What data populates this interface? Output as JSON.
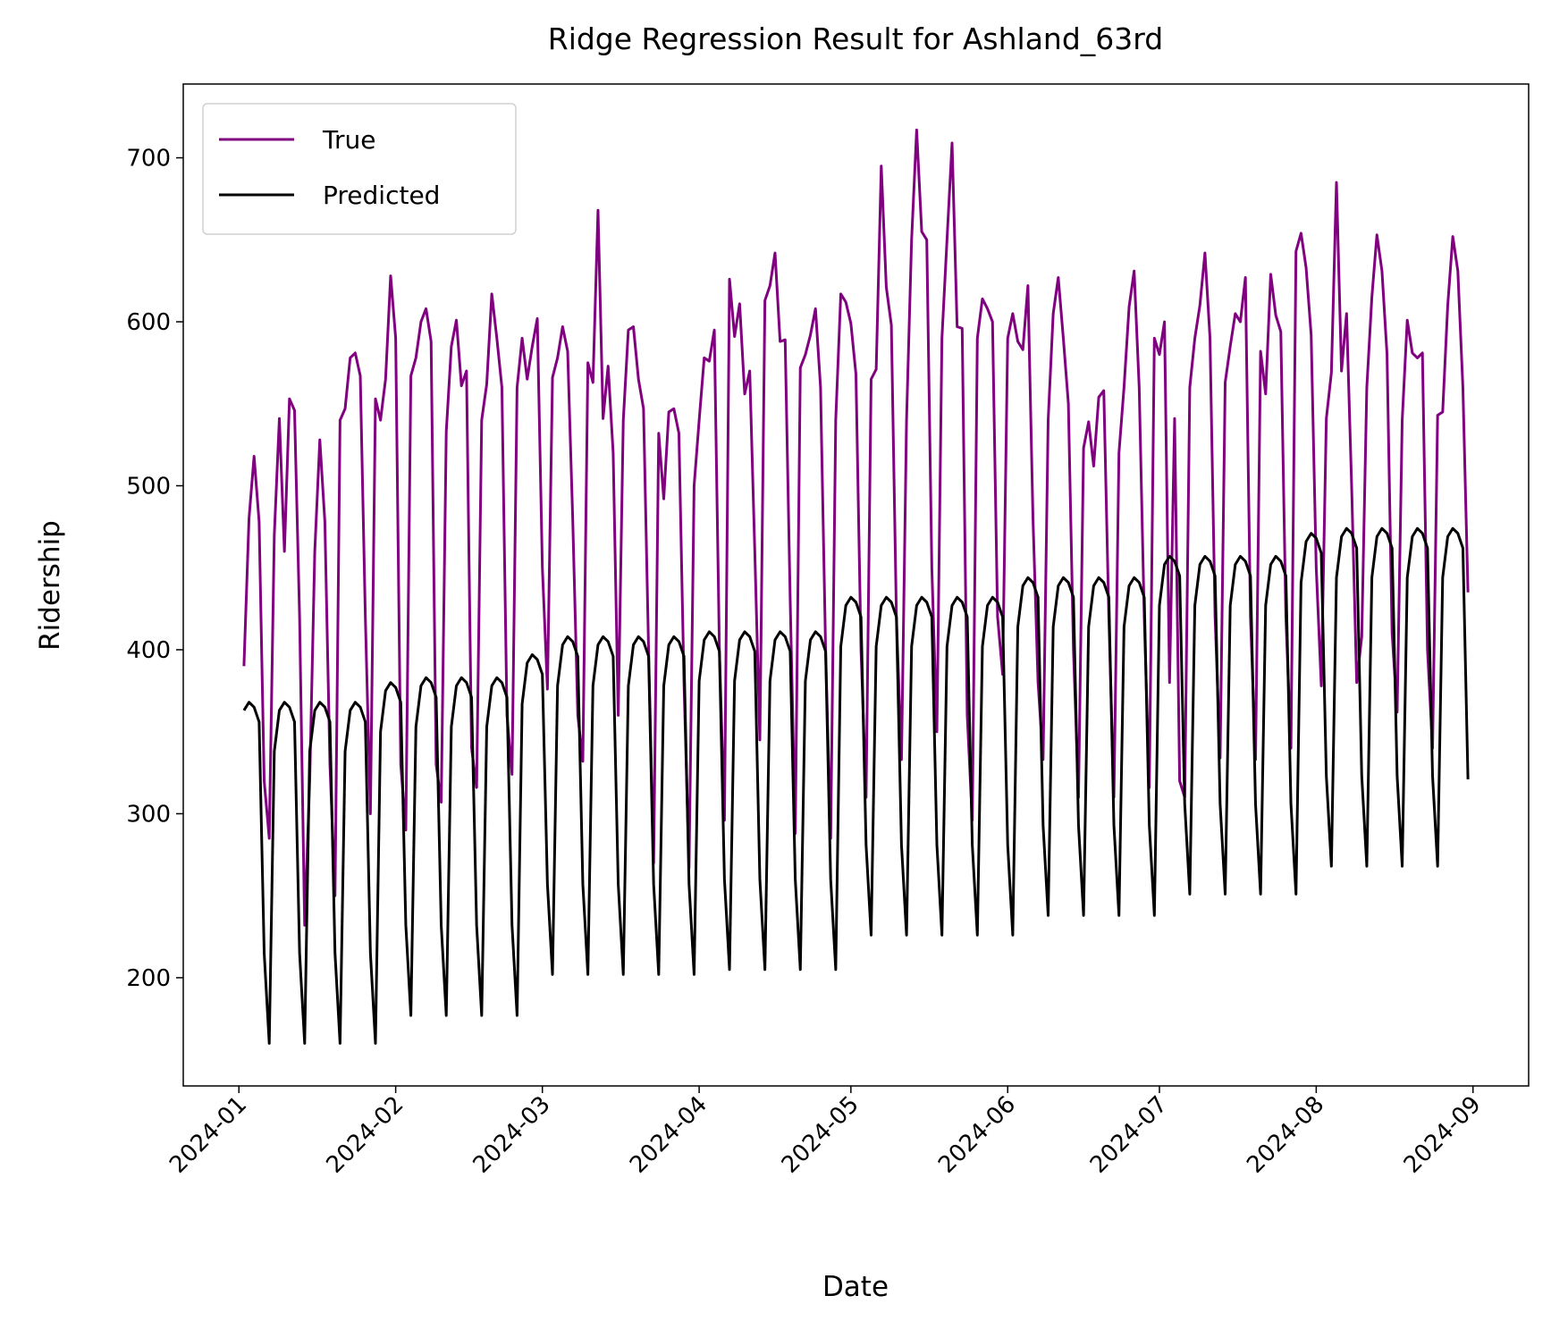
{
  "chart_data": {
    "type": "line",
    "title": "Ridge Regression Result for Ashland_63rd",
    "x_label": "Date",
    "y_label": "Ridership",
    "x": [
      "2024-01-02",
      "2024-01-03",
      "2024-01-04",
      "2024-01-05",
      "2024-01-06",
      "2024-01-07",
      "2024-01-08",
      "2024-01-09",
      "2024-01-10",
      "2024-01-11",
      "2024-01-12",
      "2024-01-13",
      "2024-01-14",
      "2024-01-15",
      "2024-01-16",
      "2024-01-17",
      "2024-01-18",
      "2024-01-19",
      "2024-01-20",
      "2024-01-21",
      "2024-01-22",
      "2024-01-23",
      "2024-01-24",
      "2024-01-25",
      "2024-01-26",
      "2024-01-27",
      "2024-01-28",
      "2024-01-29",
      "2024-01-30",
      "2024-01-31",
      "2024-02-01",
      "2024-02-02",
      "2024-02-03",
      "2024-02-04",
      "2024-02-05",
      "2024-02-06",
      "2024-02-07",
      "2024-02-08",
      "2024-02-09",
      "2024-02-10",
      "2024-02-11",
      "2024-02-12",
      "2024-02-13",
      "2024-02-14",
      "2024-02-15",
      "2024-02-16",
      "2024-02-17",
      "2024-02-18",
      "2024-02-19",
      "2024-02-20",
      "2024-02-21",
      "2024-02-22",
      "2024-02-23",
      "2024-02-24",
      "2024-02-25",
      "2024-02-26",
      "2024-02-27",
      "2024-02-28",
      "2024-02-29",
      "2024-03-01",
      "2024-03-02",
      "2024-03-03",
      "2024-03-04",
      "2024-03-05",
      "2024-03-06",
      "2024-03-07",
      "2024-03-08",
      "2024-03-09",
      "2024-03-10",
      "2024-03-11",
      "2024-03-12",
      "2024-03-13",
      "2024-03-14",
      "2024-03-15",
      "2024-03-16",
      "2024-03-17",
      "2024-03-18",
      "2024-03-19",
      "2024-03-20",
      "2024-03-21",
      "2024-03-22",
      "2024-03-23",
      "2024-03-24",
      "2024-03-25",
      "2024-03-26",
      "2024-03-27",
      "2024-03-28",
      "2024-03-29",
      "2024-03-30",
      "2024-03-31",
      "2024-04-01",
      "2024-04-02",
      "2024-04-03",
      "2024-04-04",
      "2024-04-05",
      "2024-04-06",
      "2024-04-07",
      "2024-04-08",
      "2024-04-09",
      "2024-04-10",
      "2024-04-11",
      "2024-04-12",
      "2024-04-13",
      "2024-04-14",
      "2024-04-15",
      "2024-04-16",
      "2024-04-17",
      "2024-04-18",
      "2024-04-19",
      "2024-04-20",
      "2024-04-21",
      "2024-04-22",
      "2024-04-23",
      "2024-04-24",
      "2024-04-25",
      "2024-04-26",
      "2024-04-27",
      "2024-04-28",
      "2024-04-29",
      "2024-04-30",
      "2024-05-01",
      "2024-05-02",
      "2024-05-03",
      "2024-05-04",
      "2024-05-05",
      "2024-05-06",
      "2024-05-07",
      "2024-05-08",
      "2024-05-09",
      "2024-05-10",
      "2024-05-11",
      "2024-05-12",
      "2024-05-13",
      "2024-05-14",
      "2024-05-15",
      "2024-05-16",
      "2024-05-17",
      "2024-05-18",
      "2024-05-19",
      "2024-05-20",
      "2024-05-21",
      "2024-05-22",
      "2024-05-23",
      "2024-05-24",
      "2024-05-25",
      "2024-05-26",
      "2024-05-27",
      "2024-05-28",
      "2024-05-29",
      "2024-05-30",
      "2024-05-31",
      "2024-06-01",
      "2024-06-02",
      "2024-06-03",
      "2024-06-04",
      "2024-06-05",
      "2024-06-06",
      "2024-06-07",
      "2024-06-08",
      "2024-06-09",
      "2024-06-10",
      "2024-06-11",
      "2024-06-12",
      "2024-06-13",
      "2024-06-14",
      "2024-06-15",
      "2024-06-16",
      "2024-06-17",
      "2024-06-18",
      "2024-06-19",
      "2024-06-20",
      "2024-06-21",
      "2024-06-22",
      "2024-06-23",
      "2024-06-24",
      "2024-06-25",
      "2024-06-26",
      "2024-06-27",
      "2024-06-28",
      "2024-06-29",
      "2024-06-30",
      "2024-07-01",
      "2024-07-02",
      "2024-07-03",
      "2024-07-04",
      "2024-07-05",
      "2024-07-06",
      "2024-07-07",
      "2024-07-08",
      "2024-07-09",
      "2024-07-10",
      "2024-07-11",
      "2024-07-12",
      "2024-07-13",
      "2024-07-14",
      "2024-07-15",
      "2024-07-16",
      "2024-07-17",
      "2024-07-18",
      "2024-07-19",
      "2024-07-20",
      "2024-07-21",
      "2024-07-22",
      "2024-07-23",
      "2024-07-24",
      "2024-07-25",
      "2024-07-26",
      "2024-07-27",
      "2024-07-28",
      "2024-07-29",
      "2024-07-30",
      "2024-07-31",
      "2024-08-01",
      "2024-08-02",
      "2024-08-03",
      "2024-08-04",
      "2024-08-05",
      "2024-08-06",
      "2024-08-07",
      "2024-08-08",
      "2024-08-09",
      "2024-08-10",
      "2024-08-11",
      "2024-08-12",
      "2024-08-13",
      "2024-08-14",
      "2024-08-15",
      "2024-08-16",
      "2024-08-17",
      "2024-08-18",
      "2024-08-19",
      "2024-08-20",
      "2024-08-21",
      "2024-08-22",
      "2024-08-23",
      "2024-08-24",
      "2024-08-25",
      "2024-08-26",
      "2024-08-27",
      "2024-08-28",
      "2024-08-29",
      "2024-08-30",
      "2024-08-31"
    ],
    "series": [
      {
        "name": "True",
        "color": "#800080",
        "values": [
          390,
          480,
          518,
          478,
          320,
          285,
          470,
          541,
          460,
          553,
          546,
          420,
          232,
          320,
          460,
          528,
          478,
          330,
          250,
          540,
          547,
          578,
          581,
          567,
          420,
          300,
          553,
          540,
          565,
          628,
          590,
          330,
          290,
          567,
          578,
          600,
          608,
          588,
          330,
          307,
          533,
          585,
          601,
          561,
          570,
          340,
          316,
          540,
          562,
          617,
          590,
          560,
          360,
          324,
          560,
          590,
          565,
          585,
          602,
          450,
          376,
          566,
          578,
          597,
          582,
          480,
          360,
          332,
          575,
          563,
          668,
          541,
          573,
          520,
          360,
          540,
          595,
          597,
          565,
          547,
          400,
          270,
          532,
          492,
          545,
          547,
          532,
          380,
          267,
          500,
          540,
          578,
          576,
          595,
          400,
          296,
          626,
          591,
          611,
          556,
          570,
          460,
          345,
          613,
          622,
          642,
          588,
          589,
          430,
          288,
          572,
          580,
          592,
          608,
          560,
          400,
          285,
          540,
          617,
          612,
          599,
          568,
          400,
          310,
          565,
          571,
          695,
          621,
          598,
          420,
          333,
          540,
          650,
          717,
          655,
          650,
          450,
          350,
          590,
          650,
          709,
          597,
          596,
          360,
          296,
          590,
          614,
          608,
          600,
          420,
          385,
          590,
          605,
          588,
          583,
          622,
          480,
          380,
          333,
          540,
          605,
          627,
          590,
          550,
          400,
          310,
          523,
          539,
          512,
          554,
          558,
          420,
          310,
          520,
          560,
          609,
          631,
          560,
          420,
          316,
          590,
          580,
          600,
          380,
          541,
          320,
          310,
          560,
          590,
          610,
          642,
          590,
          420,
          334,
          563,
          585,
          605,
          600,
          627,
          420,
          333,
          582,
          556,
          629,
          604,
          594,
          420,
          340,
          643,
          654,
          633,
          592,
          450,
          378,
          541,
          569,
          685,
          570,
          605,
          500,
          380,
          408,
          560,
          615,
          653,
          631,
          580,
          410,
          362,
          540,
          601,
          581,
          578,
          581,
          400,
          340,
          543,
          545,
          610,
          652,
          631,
          560,
          435
        ]
      },
      {
        "name": "Predicted",
        "color": "#000000",
        "values": [
          363,
          368,
          365,
          356,
          215,
          160,
          338,
          363,
          368,
          365,
          356,
          215,
          160,
          338,
          363,
          368,
          365,
          356,
          215,
          160,
          338,
          363,
          368,
          365,
          356,
          215,
          160,
          350,
          375,
          380,
          377,
          368,
          232,
          177,
          353,
          378,
          383,
          380,
          371,
          232,
          177,
          353,
          378,
          383,
          380,
          371,
          232,
          177,
          353,
          378,
          383,
          380,
          371,
          232,
          177,
          367,
          392,
          397,
          394,
          385,
          257,
          202,
          378,
          403,
          408,
          405,
          396,
          257,
          202,
          378,
          403,
          408,
          405,
          396,
          257,
          202,
          378,
          403,
          408,
          405,
          396,
          257,
          202,
          378,
          403,
          408,
          405,
          396,
          257,
          202,
          381,
          406,
          411,
          408,
          399,
          260,
          205,
          381,
          406,
          411,
          408,
          399,
          260,
          205,
          381,
          406,
          411,
          408,
          399,
          260,
          205,
          381,
          406,
          411,
          408,
          399,
          260,
          205,
          402,
          427,
          432,
          429,
          420,
          281,
          226,
          402,
          427,
          432,
          429,
          420,
          281,
          226,
          402,
          427,
          432,
          429,
          420,
          281,
          226,
          402,
          427,
          432,
          429,
          420,
          281,
          226,
          402,
          427,
          432,
          429,
          420,
          281,
          226,
          414,
          439,
          444,
          441,
          432,
          293,
          238,
          414,
          439,
          444,
          441,
          432,
          293,
          238,
          414,
          439,
          444,
          441,
          432,
          293,
          238,
          414,
          439,
          444,
          441,
          432,
          293,
          238,
          427,
          452,
          457,
          454,
          445,
          306,
          251,
          427,
          452,
          457,
          454,
          445,
          306,
          251,
          427,
          452,
          457,
          454,
          445,
          306,
          251,
          427,
          452,
          457,
          454,
          445,
          306,
          251,
          441,
          466,
          471,
          468,
          459,
          323,
          268,
          444,
          469,
          474,
          471,
          462,
          323,
          268,
          444,
          469,
          474,
          471,
          462,
          323,
          268,
          444,
          469,
          474,
          471,
          462,
          323,
          268,
          444,
          469,
          474,
          471,
          462,
          321
        ]
      }
    ],
    "xlim": [
      "2023-12-21",
      "2024-09-12"
    ],
    "xticks": [
      {
        "value": "2024-01-01",
        "label": "2024-01"
      },
      {
        "value": "2024-02-01",
        "label": "2024-02"
      },
      {
        "value": "2024-03-01",
        "label": "2024-03"
      },
      {
        "value": "2024-04-01",
        "label": "2024-04"
      },
      {
        "value": "2024-05-01",
        "label": "2024-05"
      },
      {
        "value": "2024-06-01",
        "label": "2024-06"
      },
      {
        "value": "2024-07-01",
        "label": "2024-07"
      },
      {
        "value": "2024-08-01",
        "label": "2024-08"
      },
      {
        "value": "2024-09-01",
        "label": "2024-09"
      }
    ],
    "ylim": [
      134,
      745
    ],
    "yticks": [
      200,
      300,
      400,
      500,
      600,
      700
    ],
    "grid": false,
    "legend": "upper left"
  }
}
